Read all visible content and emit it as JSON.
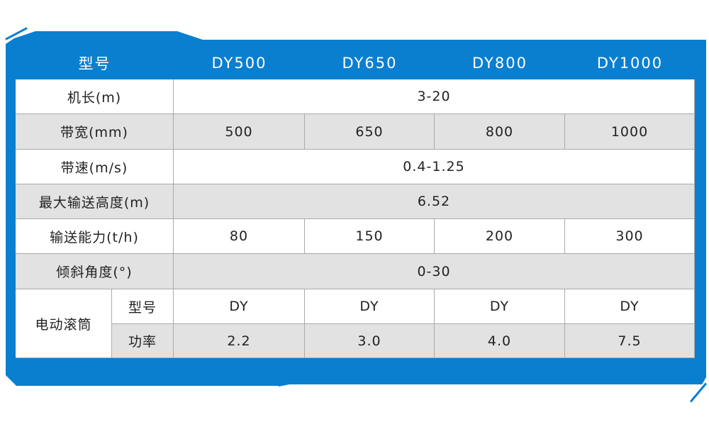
{
  "header": {
    "label": "型号",
    "models": [
      "DY500",
      "DY650",
      "DY800",
      "DY1000"
    ]
  },
  "rows": [
    {
      "label": "机长(m)",
      "values": [
        "3-20"
      ],
      "shade": "white"
    },
    {
      "label": "带宽(mm)",
      "values": [
        "500",
        "650",
        "800",
        "1000"
      ],
      "shade": "gray"
    },
    {
      "label": "带速(m/s)",
      "values": [
        "0.4-1.25"
      ],
      "shade": "white"
    },
    {
      "label": "最大输送高度(m)",
      "values": [
        "6.52"
      ],
      "shade": "gray"
    },
    {
      "label": "输送能力(t/h)",
      "values": [
        "80",
        "150",
        "200",
        "300"
      ],
      "shade": "white"
    },
    {
      "label": "倾斜角度(°)",
      "values": [
        "0-30"
      ],
      "shade": "gray"
    }
  ],
  "motor": {
    "label": "电动滚筒",
    "sub": [
      {
        "label": "型号",
        "values": [
          "DY",
          "DY",
          "DY",
          "DY"
        ],
        "shade": "white"
      },
      {
        "label": "功率",
        "values": [
          "2.2",
          "3.0",
          "4.0",
          "7.5"
        ],
        "shade": "gray"
      }
    ]
  },
  "colors": {
    "accent": "#0a7fd0",
    "gray_row": "#e2e2e2"
  }
}
